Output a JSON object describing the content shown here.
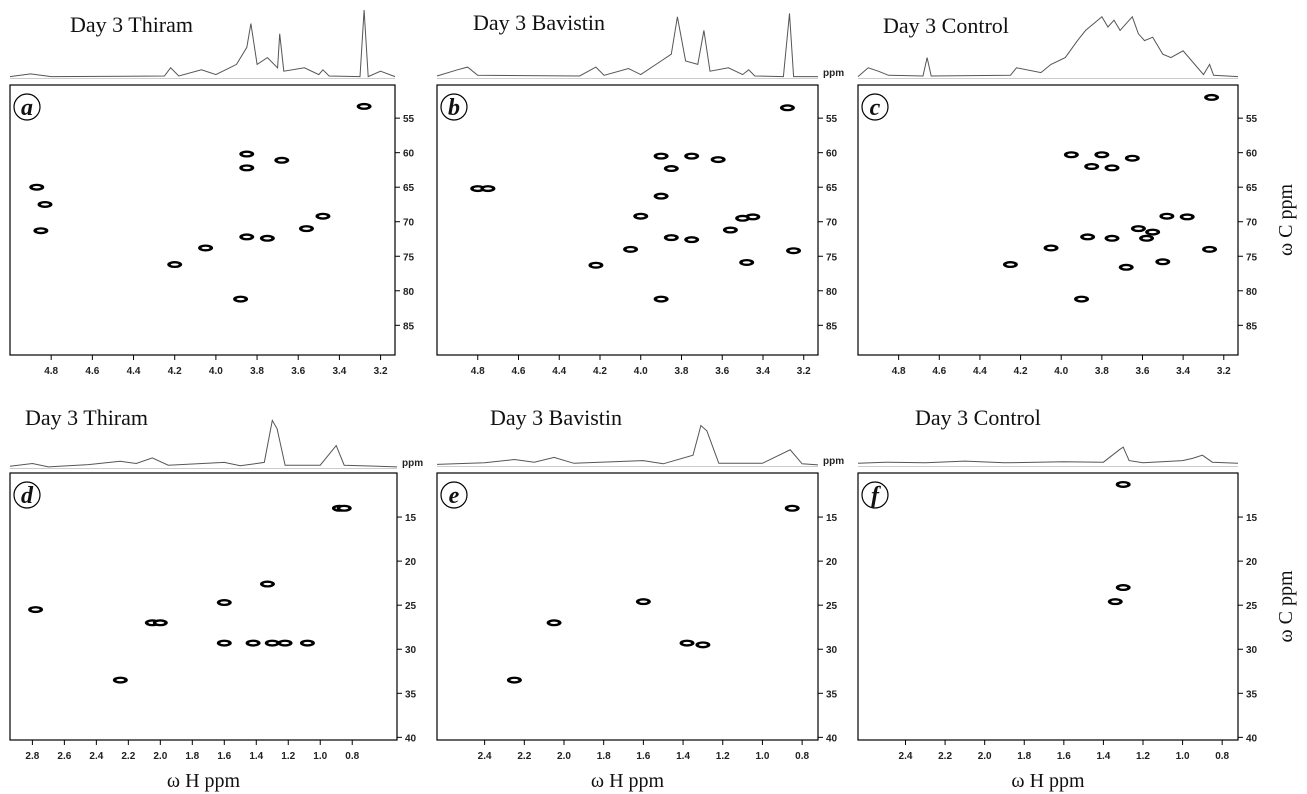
{
  "chart_data": [
    {
      "type": "scatter",
      "title": "Day 3 Thiram",
      "panel_label": "a",
      "color": "#000000",
      "x": [
        3.28,
        3.85,
        3.68,
        3.85,
        4.87,
        4.83,
        4.85,
        4.05,
        4.2,
        3.85,
        3.75,
        3.56,
        3.48,
        3.88
      ],
      "y": [
        53.3,
        60.2,
        61.1,
        62.2,
        65,
        67.5,
        71.3,
        73.8,
        76.2,
        72.2,
        72.4,
        71,
        69.2,
        81.2
      ],
      "xlim": [
        5.0,
        3.13
      ],
      "ylim": [
        50.2,
        89.3
      ],
      "xticks": [
        4.8,
        4.6,
        4.4,
        4.2,
        {
          "value": 4.0,
          "label": "4.0"
        },
        3.8,
        3.6,
        3.4,
        3.2
      ],
      "yticks": [
        55,
        60,
        65,
        70,
        75,
        80,
        85
      ],
      "trace": {
        "x": [
          5.0,
          4.9,
          4.8,
          4.25,
          4.22,
          4.18,
          4.07,
          4.0,
          3.9,
          3.85,
          3.83,
          3.8,
          3.75,
          3.7,
          3.69,
          3.67,
          3.57,
          3.5,
          3.48,
          3.45,
          3.3,
          3.28,
          3.26,
          3.2,
          3.13
        ],
        "values": [
          0.02,
          0.06,
          0.02,
          0.03,
          0.15,
          0.03,
          0.12,
          0.05,
          0.2,
          0.45,
          0.8,
          0.2,
          0.3,
          0.15,
          0.65,
          0.1,
          0.15,
          0.05,
          0.12,
          0.03,
          0.02,
          1.0,
          0.02,
          0.1,
          0.02
        ]
      }
    },
    {
      "type": "scatter",
      "title": "Day 3 Bavistin",
      "panel_label": "b",
      "ppm_label": "ppm",
      "color": "#000000",
      "x": [
        3.28,
        4.8,
        4.75,
        3.9,
        3.75,
        3.62,
        3.85,
        3.9,
        4.0,
        3.45,
        3.5,
        3.56,
        4.05,
        3.85,
        3.75,
        4.22,
        3.48,
        3.25,
        3.9
      ],
      "y": [
        53.5,
        65.2,
        65.2,
        60.5,
        60.5,
        61,
        62.3,
        66.3,
        69.2,
        69.3,
        69.5,
        71.2,
        74,
        72.3,
        72.6,
        76.3,
        75.9,
        74.2,
        81.2
      ],
      "xlim": [
        5.0,
        3.13
      ],
      "ylim": [
        50.2,
        89.3
      ],
      "xticks": [
        4.8,
        4.6,
        4.4,
        4.2,
        {
          "value": 4.0,
          "label": "4.0"
        },
        3.8,
        3.6,
        3.4,
        3.2
      ],
      "yticks": [
        55,
        60,
        65,
        70,
        75,
        80,
        85
      ],
      "trace": {
        "x": [
          5.0,
          4.9,
          4.85,
          4.8,
          4.3,
          4.22,
          4.18,
          4.06,
          4.0,
          3.9,
          3.85,
          3.82,
          3.78,
          3.72,
          3.69,
          3.66,
          3.57,
          3.5,
          3.47,
          3.44,
          3.3,
          3.27,
          3.25,
          3.13
        ],
        "values": [
          0.03,
          0.12,
          0.16,
          0.04,
          0.03,
          0.16,
          0.04,
          0.14,
          0.05,
          0.25,
          0.35,
          0.9,
          0.25,
          0.2,
          0.7,
          0.1,
          0.15,
          0.05,
          0.12,
          0.03,
          0.02,
          0.95,
          0.02,
          0.02
        ]
      }
    },
    {
      "type": "scatter",
      "title": "Day 3 Control",
      "panel_label": "c",
      "ylabel": "ω C ppm",
      "color": "#000000",
      "x": [
        3.26,
        3.95,
        3.8,
        3.65,
        3.85,
        3.75,
        3.48,
        3.38,
        3.62,
        3.55,
        3.58,
        3.75,
        3.87,
        4.05,
        4.25,
        3.5,
        3.68,
        3.27,
        3.9
      ],
      "y": [
        52,
        60.3,
        60.3,
        60.8,
        62,
        62.2,
        69.2,
        69.3,
        71,
        71.5,
        72.4,
        72.4,
        72.2,
        73.8,
        76.2,
        75.8,
        76.6,
        74,
        81.2
      ],
      "xlim": [
        5.0,
        3.13
      ],
      "ylim": [
        50.2,
        89.3
      ],
      "xticks": [
        4.8,
        4.6,
        4.4,
        4.2,
        {
          "value": 4.0,
          "label": "4.0"
        },
        3.8,
        3.6,
        3.4,
        3.2
      ],
      "yticks": [
        55,
        60,
        65,
        70,
        75,
        80,
        85
      ],
      "trace": {
        "x": [
          5.0,
          4.95,
          4.9,
          4.85,
          4.68,
          4.66,
          4.64,
          4.25,
          4.22,
          4.1,
          4.05,
          3.98,
          3.92,
          3.88,
          3.84,
          3.8,
          3.77,
          3.74,
          3.71,
          3.68,
          3.65,
          3.62,
          3.59,
          3.55,
          3.5,
          3.46,
          3.4,
          3.3,
          3.27,
          3.25,
          3.13
        ],
        "values": [
          0.02,
          0.15,
          0.1,
          0.04,
          0.03,
          0.3,
          0.03,
          0.04,
          0.15,
          0.08,
          0.2,
          0.3,
          0.55,
          0.7,
          0.8,
          0.9,
          0.75,
          0.85,
          0.7,
          0.8,
          0.9,
          0.65,
          0.55,
          0.6,
          0.35,
          0.3,
          0.4,
          0.05,
          0.2,
          0.04,
          0.02
        ]
      }
    },
    {
      "type": "scatter",
      "title": "Day 3 Thiram",
      "panel_label": "d",
      "ppm_label": "ppm",
      "xlabel": "ω H ppm",
      "color": "#000000",
      "x": [
        2.78,
        2.25,
        2.05,
        2.0,
        1.6,
        1.33,
        1.42,
        1.3,
        1.22,
        1.6,
        1.08,
        0.88,
        0.85
      ],
      "y": [
        25.5,
        33.5,
        27,
        27,
        24.7,
        22.6,
        29.3,
        29.3,
        29.3,
        29.3,
        29.3,
        14,
        14
      ],
      "xlim": [
        2.94,
        0.52
      ],
      "ylim": [
        10,
        40.3
      ],
      "xticks": [
        2.8,
        2.6,
        2.4,
        2.2,
        {
          "value": 2.0,
          "label": "2.0"
        },
        1.8,
        1.6,
        1.4,
        1.2,
        {
          "value": 1.0,
          "label": "1.0"
        },
        0.8
      ],
      "yticks": [
        15,
        20,
        25,
        30,
        35,
        40
      ],
      "trace": {
        "x": [
          2.94,
          2.8,
          2.7,
          2.45,
          2.25,
          2.15,
          2.05,
          1.95,
          1.6,
          1.5,
          1.35,
          1.3,
          1.27,
          1.22,
          1.0,
          0.9,
          0.85,
          0.52
        ],
        "values": [
          0.03,
          0.08,
          0.02,
          0.06,
          0.12,
          0.08,
          0.18,
          0.05,
          0.1,
          0.04,
          0.1,
          0.85,
          0.7,
          0.05,
          0.05,
          0.4,
          0.05,
          0.02
        ]
      }
    },
    {
      "type": "scatter",
      "title": "Day 3 Bavistin",
      "panel_label": "e",
      "ppm_label": "ppm",
      "xlabel": "ω H ppm",
      "color": "#000000",
      "x": [
        0.85,
        1.6,
        2.05,
        2.25,
        1.38,
        1.3
      ],
      "y": [
        14,
        24.6,
        27,
        33.5,
        29.3,
        29.5
      ],
      "xlim": [
        2.64,
        0.72
      ],
      "ylim": [
        10,
        40.3
      ],
      "xticks": [
        2.4,
        2.2,
        {
          "value": 2.0,
          "label": "2.0"
        },
        1.8,
        1.6,
        1.4,
        1.2,
        {
          "value": 1.0,
          "label": "1.0"
        },
        0.8
      ],
      "yticks": [
        15,
        20,
        25,
        30,
        35,
        40
      ],
      "trace": {
        "x": [
          2.64,
          2.4,
          2.25,
          2.15,
          2.05,
          1.95,
          1.6,
          1.5,
          1.35,
          1.31,
          1.28,
          1.22,
          1.0,
          0.86,
          0.8,
          0.72
        ],
        "values": [
          0.03,
          0.06,
          0.12,
          0.07,
          0.16,
          0.05,
          0.1,
          0.04,
          0.2,
          0.75,
          0.65,
          0.05,
          0.05,
          0.3,
          0.04,
          0.02
        ]
      }
    },
    {
      "type": "scatter",
      "title": "Day 3 Control",
      "panel_label": "f",
      "xlabel": "ω H ppm",
      "ylabel": "ω C ppm",
      "color": "#000000",
      "x": [
        1.3,
        1.3,
        1.34
      ],
      "y": [
        11.3,
        23,
        24.6
      ],
      "xlim": [
        2.64,
        0.72
      ],
      "ylim": [
        10,
        40.3
      ],
      "xticks": [
        2.4,
        2.2,
        {
          "value": 2.0,
          "label": "2.0"
        },
        1.8,
        1.6,
        1.4,
        1.2,
        {
          "value": 1.0,
          "label": "1.0"
        },
        0.8
      ],
      "yticks": [
        15,
        20,
        25,
        30,
        35,
        40
      ],
      "trace": {
        "x": [
          2.64,
          2.5,
          2.3,
          2.1,
          1.9,
          1.6,
          1.4,
          1.32,
          1.3,
          1.27,
          1.2,
          1.0,
          0.95,
          0.9,
          0.85,
          0.72
        ],
        "values": [
          0.05,
          0.07,
          0.06,
          0.09,
          0.06,
          0.08,
          0.07,
          0.3,
          0.35,
          0.1,
          0.06,
          0.1,
          0.14,
          0.2,
          0.07,
          0.05
        ]
      }
    }
  ]
}
